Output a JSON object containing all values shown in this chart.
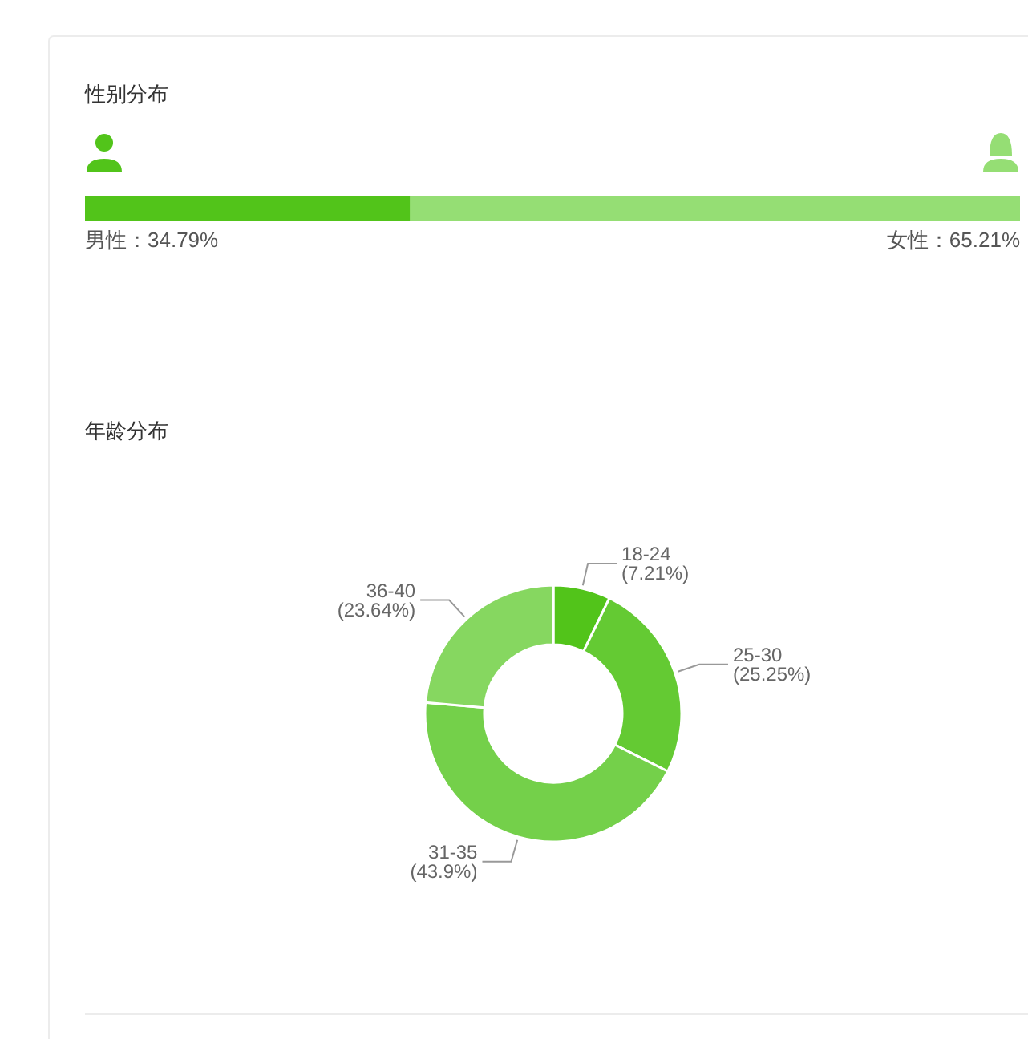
{
  "chart_data": [
    {
      "type": "bar",
      "title": "性别分布",
      "orientation": "horizontal",
      "stacked": true,
      "categories": [
        null
      ],
      "series": [
        {
          "name": "男性：",
          "color": "#52c41a",
          "values": [
            34.79
          ],
          "value_labels": [
            "34.79%"
          ]
        },
        {
          "name": "女性：",
          "color": "#95de74",
          "values": [
            65.21
          ],
          "value_labels": [
            "65.21%"
          ]
        }
      ]
    },
    {
      "type": "donut",
      "title": "年龄分布",
      "categories": [
        "18-24",
        "25-30",
        "31-35",
        "36-40"
      ],
      "values": [
        7.21,
        25.25,
        43.9,
        23.64
      ],
      "value_labels": [
        "(7.21%)",
        "(25.25%)",
        "(43.9%)",
        "(23.64%)"
      ],
      "colors": [
        "#52c41a",
        "#64ca33",
        "#74d04a",
        "#86d760"
      ]
    }
  ]
}
